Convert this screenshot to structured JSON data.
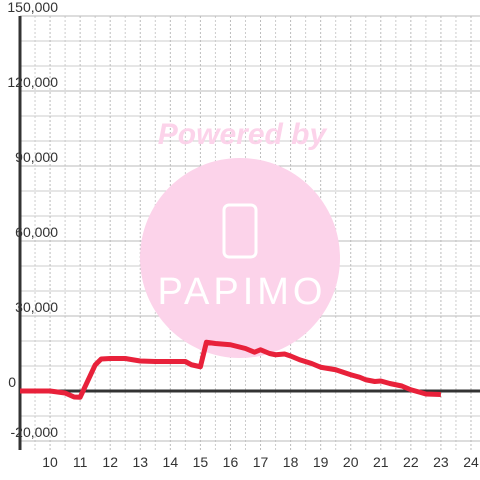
{
  "chart_data": {
    "type": "line",
    "watermark": [
      "Powered by",
      "PAPIMO"
    ],
    "x": [
      9,
      10,
      10.5,
      10.8,
      11,
      11.5,
      11.7,
      12,
      12.5,
      13,
      13.5,
      14,
      14.5,
      14.7,
      15,
      15.2,
      15.5,
      16,
      16.5,
      16.8,
      17,
      17.3,
      17.5,
      17.8,
      18,
      18.3,
      18.7,
      19,
      19.5,
      20,
      20.3,
      20.5,
      20.8,
      21,
      21.3,
      21.7,
      22,
      22.3,
      22.5,
      23
    ],
    "values": [
      0,
      0,
      -800,
      -2400,
      -2500,
      10400,
      12800,
      13000,
      13000,
      12000,
      11800,
      11800,
      11800,
      10500,
      9700,
      19500,
      19000,
      18500,
      17000,
      15500,
      16500,
      15000,
      14500,
      14800,
      14000,
      12500,
      11000,
      9500,
      8500,
      6500,
      5500,
      4500,
      3800,
      4000,
      3000,
      2000,
      500,
      -500,
      -1200,
      -1400
    ],
    "color": "#e8213a",
    "xlim": [
      9,
      24.3
    ],
    "ylim": [
      -23600,
      150000
    ],
    "xticks": [
      10,
      11,
      12,
      13,
      14,
      15,
      16,
      17,
      18,
      19,
      20,
      21,
      22,
      23,
      24
    ],
    "xminor": [
      9.5,
      10.5,
      11.5,
      12.5,
      13.5,
      14.5,
      15.5,
      16.5,
      17.5,
      18.5,
      19.5,
      20.5,
      21.5,
      22.5,
      23.5
    ],
    "yticks": [
      {
        "value": -20000,
        "label": "-20,000"
      },
      0,
      {
        "value": 30000,
        "label": "30,000"
      },
      {
        "value": 60000,
        "label": "60,000"
      },
      {
        "value": 90000,
        "label": "90,000"
      },
      {
        "value": 120000,
        "label": "120,000"
      },
      {
        "value": 150000,
        "label": "150,000"
      }
    ],
    "yminor": [
      -10000,
      10000,
      20000,
      40000,
      50000,
      70000,
      80000,
      100000,
      110000,
      130000,
      140000
    ],
    "grid": true
  }
}
